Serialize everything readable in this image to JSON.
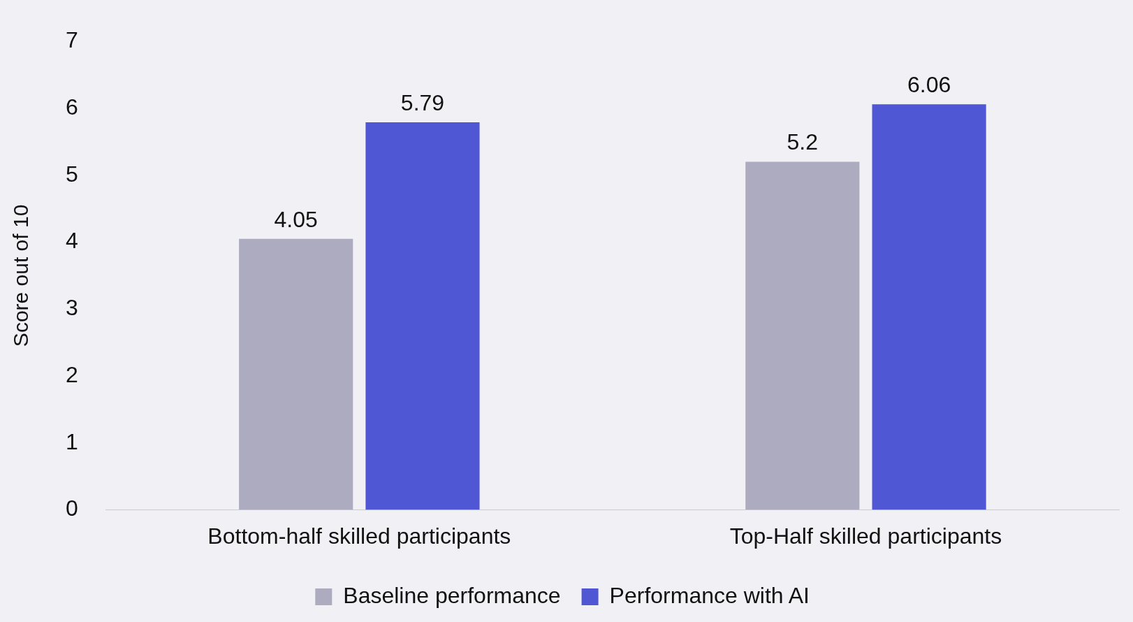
{
  "chart_data": {
    "type": "bar",
    "ylabel": "Score out of 10",
    "categories": [
      "Bottom-half skilled participants",
      "Top-Half skilled participants"
    ],
    "series": [
      {
        "name": "Baseline performance",
        "color": "#acabbf",
        "values": [
          4.05,
          5.2
        ]
      },
      {
        "name": "Performance with AI",
        "color": "#5057d5",
        "values": [
          5.79,
          6.06
        ]
      }
    ],
    "ylim": [
      0,
      7
    ],
    "yticks": [
      0,
      1,
      2,
      3,
      4,
      5,
      6,
      7
    ],
    "grid": false,
    "legend": "bottom",
    "data_labels": true
  }
}
